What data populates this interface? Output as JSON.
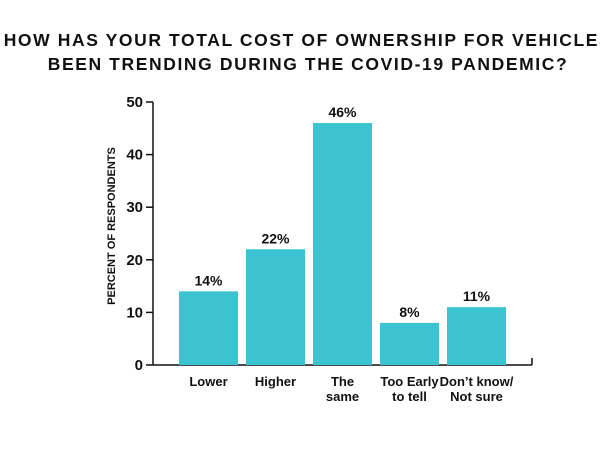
{
  "chart_data": {
    "type": "bar",
    "title": [
      "HOW HAS YOUR TOTAL COST OF OWNERSHIP FOR VEHICLES",
      "BEEN TRENDING DURING THE COVID-19 PANDEMIC?"
    ],
    "ylabel": "PERCENT OF RESPONDENTS",
    "xlabel": "",
    "categories": [
      [
        "Lower"
      ],
      [
        "Higher"
      ],
      [
        "The",
        "same"
      ],
      [
        "Too Early",
        "to tell"
      ],
      [
        "Don’t know/",
        "Not sure"
      ]
    ],
    "values": [
      14,
      22,
      46,
      8,
      11
    ],
    "data_labels": [
      "14%",
      "22%",
      "46%",
      "8%",
      "11%"
    ],
    "yticks": [
      0,
      10,
      20,
      30,
      40,
      50
    ],
    "ylim": [
      0,
      50
    ],
    "grid": false,
    "legend": "none",
    "bar_color": "#3cc3d2",
    "axis_color": "#111111"
  }
}
